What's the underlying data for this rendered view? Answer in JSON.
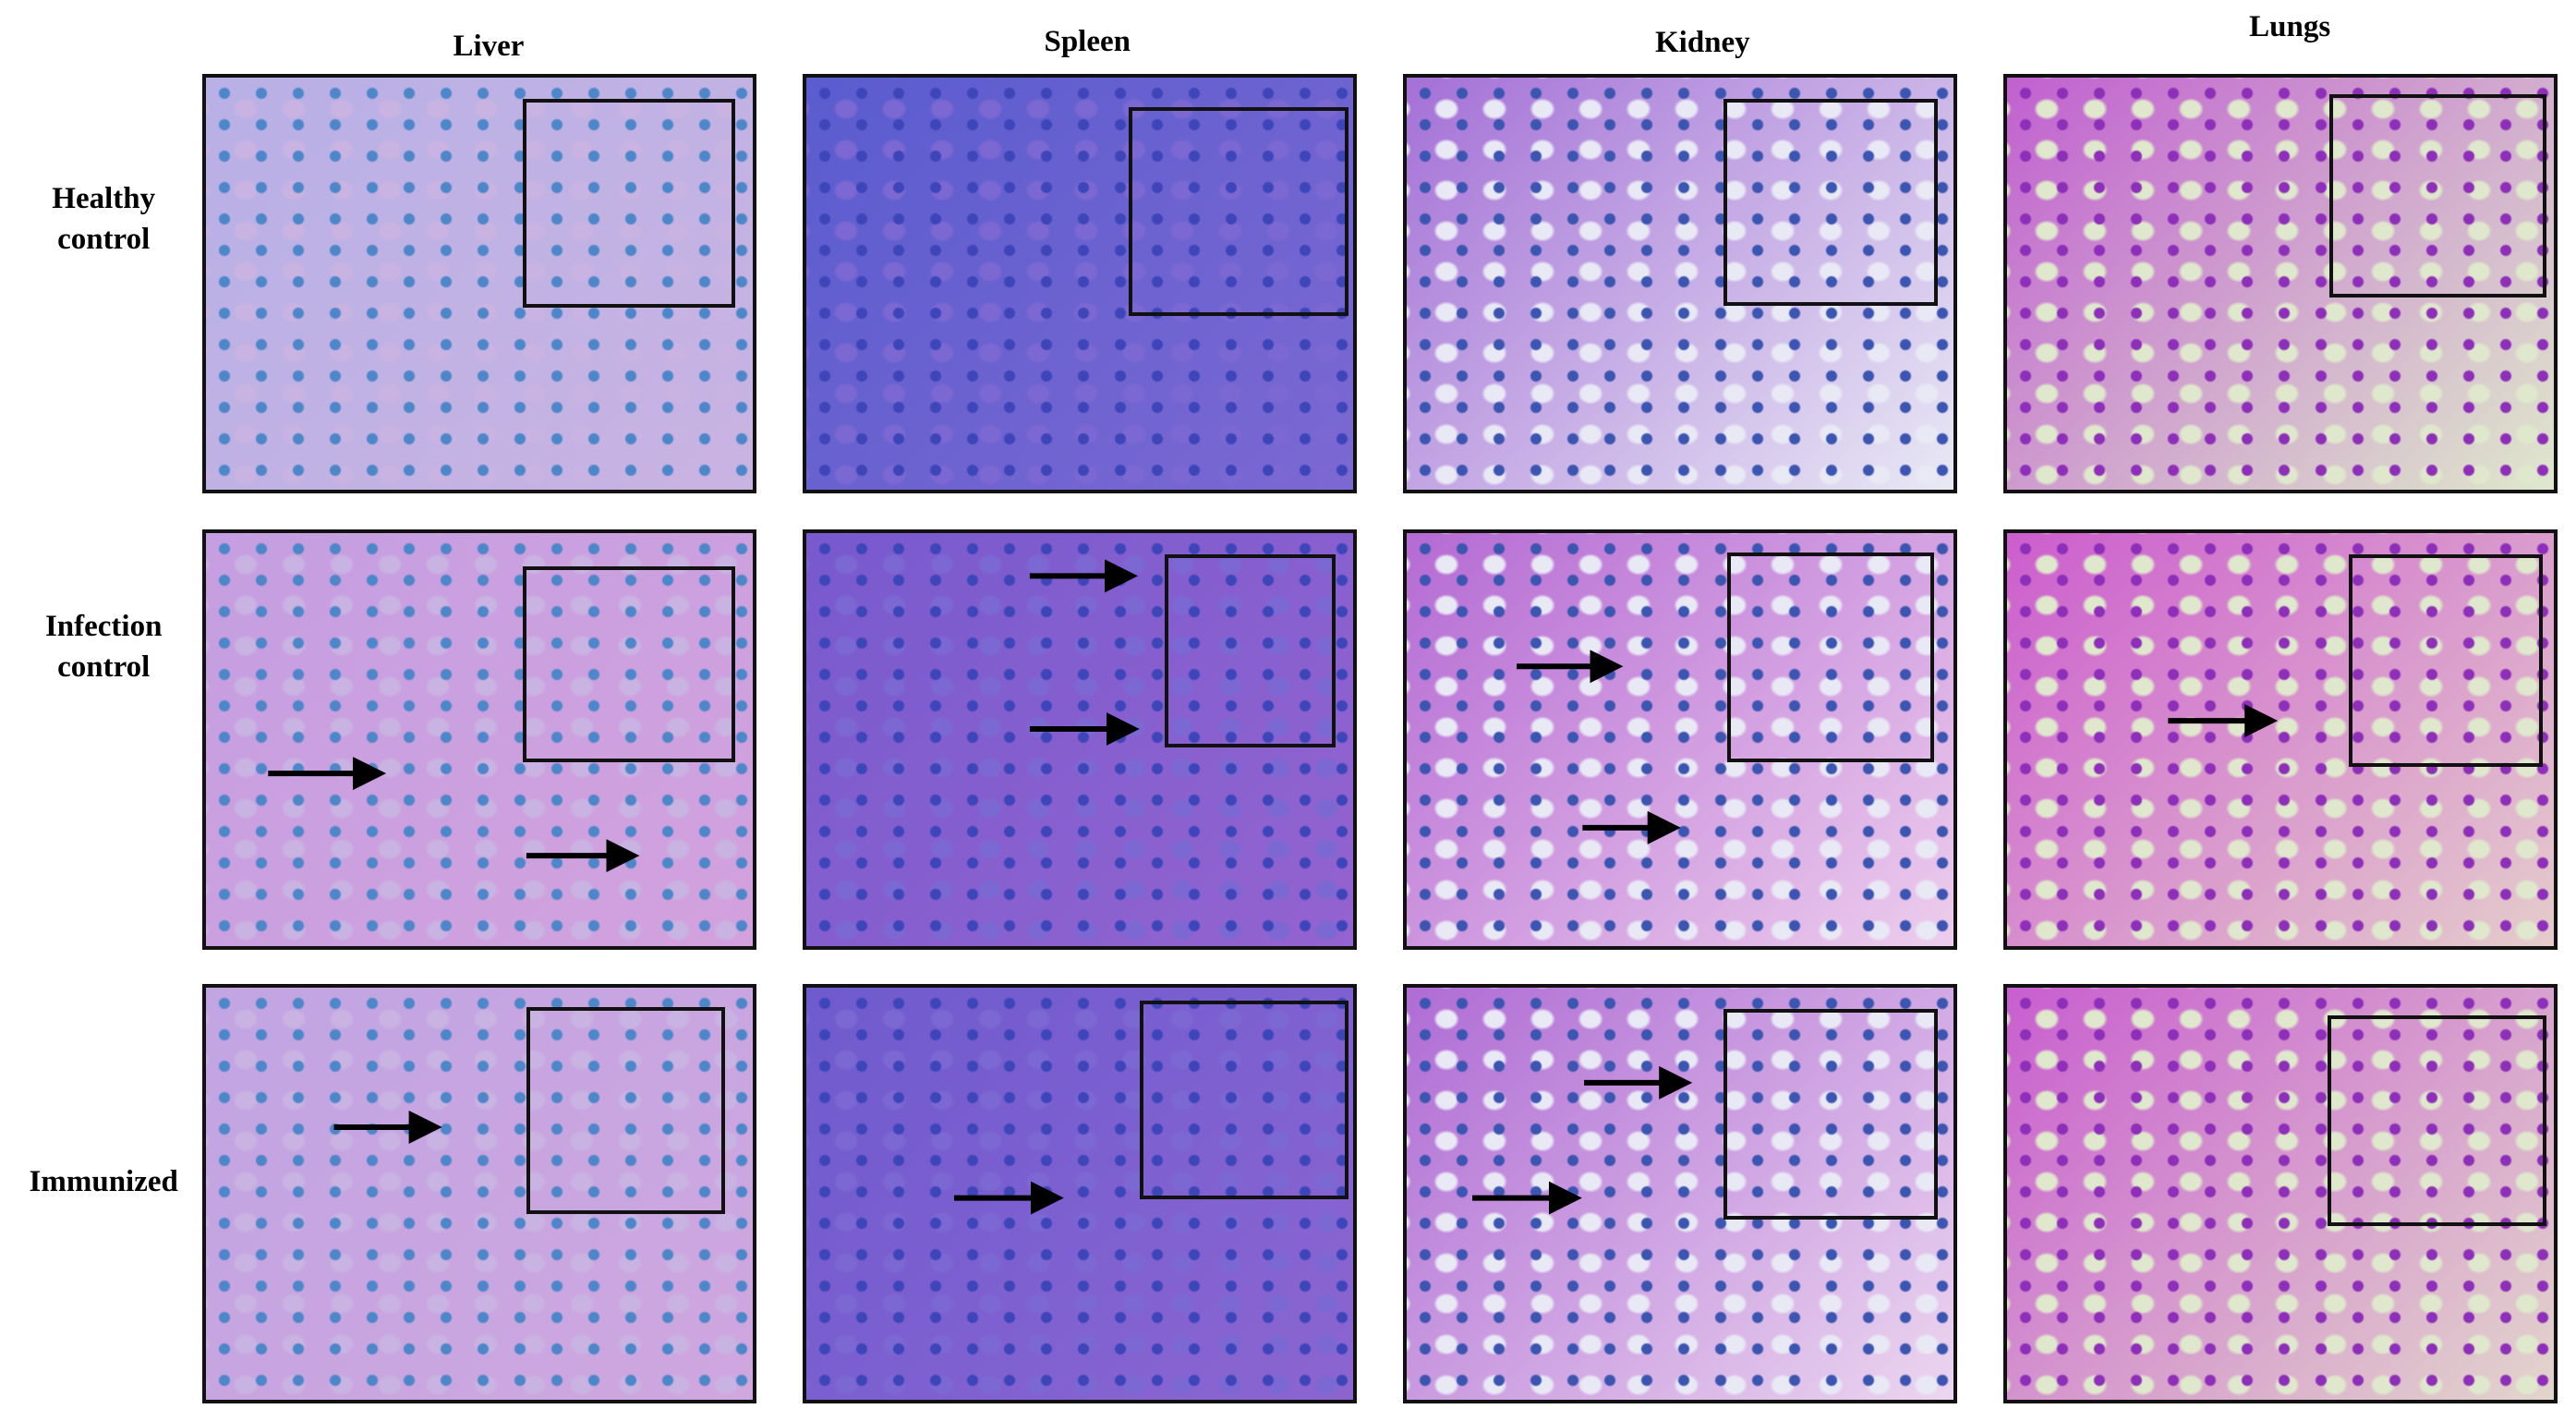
{
  "columns": [
    "Liver",
    "Spleen",
    "Kidney",
    "Lungs"
  ],
  "rows": [
    {
      "label_lines": [
        "Healthy",
        "control"
      ]
    },
    {
      "label_lines": [
        "Infection",
        "control"
      ]
    },
    {
      "label_lines": [
        "Immunized"
      ]
    }
  ]
}
